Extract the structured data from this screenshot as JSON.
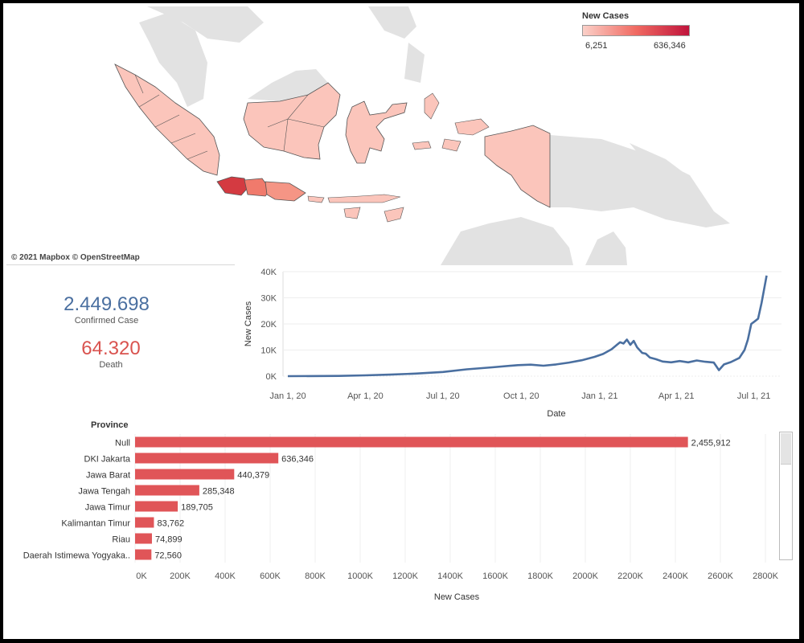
{
  "map": {
    "credit": "© 2021 Mapbox © OpenStreetMap",
    "legend": {
      "title": "New Cases",
      "min": "6,251",
      "max": "636,346"
    },
    "colors": {
      "land": "#e2e2e2",
      "low": "#fbc5bb",
      "mid": "#f07a6c",
      "high": "#d43a41"
    }
  },
  "kpis": {
    "confirmed": {
      "value": "2.449.698",
      "label": "Confirmed Case",
      "color": "#4a6fa0"
    },
    "death": {
      "value": "64.320",
      "label": "Death",
      "color": "#d9534f"
    }
  },
  "chart_data": [
    {
      "type": "line",
      "xlabel": "Date",
      "ylabel": "New Cases",
      "ylim": [
        0,
        40000
      ],
      "yticks": [
        "0K",
        "10K",
        "20K",
        "30K",
        "40K"
      ],
      "yticks_values": [
        0,
        10000,
        20000,
        30000,
        40000
      ],
      "xticks": [
        "Jan 1, 20",
        "Apr 1, 20",
        "Jul 1, 20",
        "Oct 1, 20",
        "Jan 1, 21",
        "Apr 1, 21",
        "Jul 1, 21"
      ],
      "x_range_days": [
        0,
        570
      ],
      "color": "#4a6fa0",
      "points": [
        [
          0,
          0
        ],
        [
          60,
          100
        ],
        [
          90,
          300
        ],
        [
          120,
          600
        ],
        [
          150,
          1000
        ],
        [
          182,
          1600
        ],
        [
          210,
          2600
        ],
        [
          240,
          3400
        ],
        [
          270,
          4200
        ],
        [
          285,
          4400
        ],
        [
          300,
          4000
        ],
        [
          315,
          4500
        ],
        [
          330,
          5200
        ],
        [
          345,
          6100
        ],
        [
          360,
          7400
        ],
        [
          370,
          8500
        ],
        [
          380,
          10300
        ],
        [
          386,
          11900
        ],
        [
          390,
          13000
        ],
        [
          394,
          12500
        ],
        [
          398,
          14000
        ],
        [
          402,
          12000
        ],
        [
          406,
          13500
        ],
        [
          410,
          11000
        ],
        [
          416,
          8900
        ],
        [
          420,
          8600
        ],
        [
          425,
          7100
        ],
        [
          432,
          6500
        ],
        [
          440,
          5600
        ],
        [
          450,
          5300
        ],
        [
          460,
          5800
        ],
        [
          470,
          5300
        ],
        [
          480,
          6000
        ],
        [
          490,
          5500
        ],
        [
          500,
          5200
        ],
        [
          506,
          2300
        ],
        [
          512,
          4500
        ],
        [
          520,
          5400
        ],
        [
          530,
          7000
        ],
        [
          536,
          10000
        ],
        [
          540,
          14000
        ],
        [
          544,
          20000
        ],
        [
          548,
          21000
        ],
        [
          552,
          22000
        ],
        [
          556,
          28000
        ],
        [
          560,
          35000
        ],
        [
          562,
          38500
        ]
      ]
    },
    {
      "type": "bar",
      "orientation": "horizontal",
      "header": "Province",
      "xlabel": "New Cases",
      "categories": [
        "Null",
        "DKI Jakarta",
        "Jawa Barat",
        "Jawa Tengah",
        "Jawa Timur",
        "Kalimantan Timur",
        "Riau",
        "Daerah Istimewa Yogyaka.."
      ],
      "values": [
        2455912,
        636346,
        440379,
        285348,
        189705,
        83762,
        74899,
        72560
      ],
      "value_labels": [
        "2,455,912",
        "636,346",
        "440,379",
        "285,348",
        "189,705",
        "83,762",
        "74,899",
        "72,560"
      ],
      "xlim": [
        0,
        2800000
      ],
      "xticks": [
        "0K",
        "200K",
        "400K",
        "600K",
        "800K",
        "1000K",
        "1200K",
        "1400K",
        "1600K",
        "1800K",
        "2000K",
        "2200K",
        "2400K",
        "2600K",
        "2800K"
      ],
      "xticks_values": [
        0,
        200000,
        400000,
        600000,
        800000,
        1000000,
        1200000,
        1400000,
        1600000,
        1800000,
        2000000,
        2200000,
        2400000,
        2600000,
        2800000
      ],
      "color": "#e05558"
    }
  ]
}
